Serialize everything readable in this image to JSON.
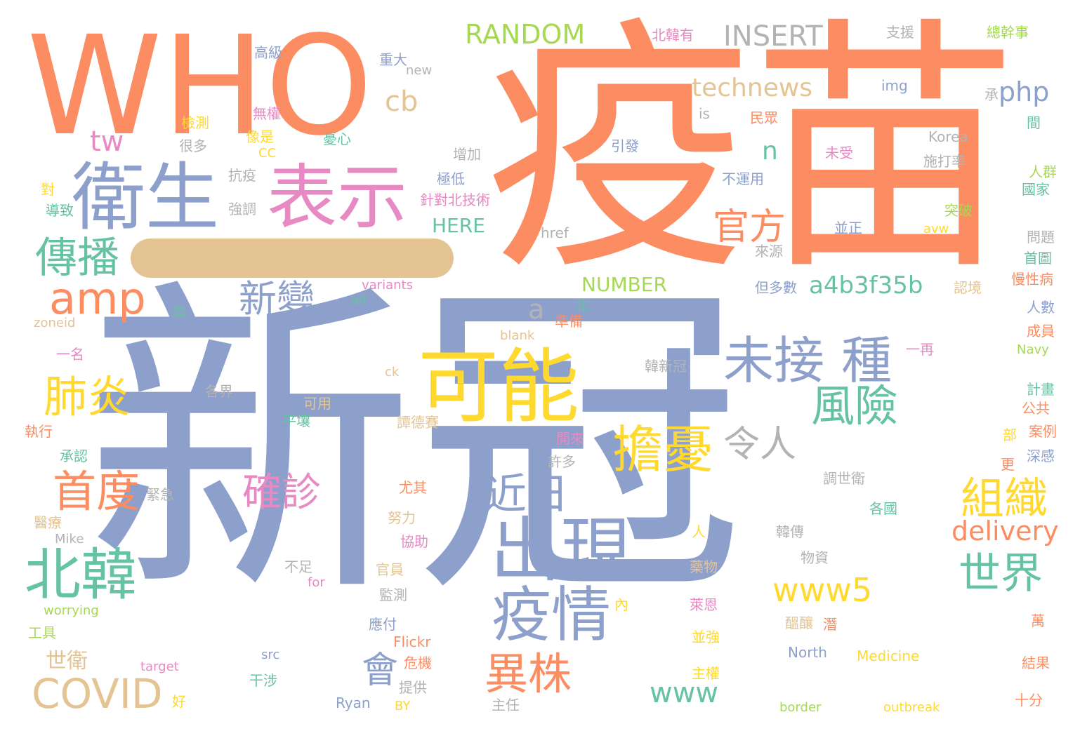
{
  "palette": {
    "orange": "#fc8d62",
    "blue": "#8da0cb",
    "pink": "#e78ac3",
    "green": "#66c2a5",
    "lime": "#a6d854",
    "yellow": "#ffd92f",
    "tan": "#e5c494",
    "gray": "#b3b3b3"
  },
  "words": [
    {
      "text": "新冠",
      "color": "#8da0cb"
    },
    {
      "text": "疫苗",
      "color": "#fc8d62"
    },
    {
      "text": "WHO",
      "color": "#fc8d62"
    },
    {
      "text": "衛生",
      "color": "#8da0cb"
    },
    {
      "text": "表示",
      "color": "#e78ac3"
    },
    {
      "text": "可能",
      "color": "#ffd92f"
    },
    {
      "text": "出現",
      "color": "#8da0cb"
    },
    {
      "text": "疫情",
      "color": "#8da0cb"
    },
    {
      "text": "amp",
      "color": "#fc8d62"
    },
    {
      "text": "北韓",
      "color": "#66c2a5"
    },
    {
      "text": "未接",
      "color": "#8da0cb"
    },
    {
      "text": "種",
      "color": "#8da0cb"
    },
    {
      "text": "擔憂",
      "color": "#ffd92f"
    },
    {
      "text": "COVID",
      "color": "#e5c494"
    },
    {
      "text": "傳播",
      "color": "#66c2a5"
    },
    {
      "text": "肺炎",
      "color": "#ffd92f"
    },
    {
      "text": "首度",
      "color": "#fc8d62"
    },
    {
      "text": "風險",
      "color": "#66c2a5"
    },
    {
      "text": "組織",
      "color": "#ffd92f"
    },
    {
      "text": "世界",
      "color": "#66c2a5"
    },
    {
      "text": "異株",
      "color": "#fc8d62"
    },
    {
      "text": "近日",
      "color": "#8da0cb"
    },
    {
      "text": "確診",
      "color": "#e78ac3"
    },
    {
      "text": "新變",
      "color": "#8da0cb"
    },
    {
      "text": "官方",
      "color": "#fc8d62"
    },
    {
      "text": "令人",
      "color": "#b3b3b3"
    },
    {
      "text": "www5",
      "color": "#ffd92f"
    },
    {
      "text": "會",
      "color": "#8da0cb"
    },
    {
      "text": "a4b3f35b",
      "color": "#66c2a5"
    },
    {
      "text": "delivery",
      "color": "#fc8d62"
    },
    {
      "text": "technews",
      "color": "#e5c494"
    },
    {
      "text": "RANDOM",
      "color": "#a6d854"
    },
    {
      "text": "INSERT",
      "color": "#b3b3b3"
    },
    {
      "text": "php",
      "color": "#8da0cb"
    },
    {
      "text": "cb",
      "color": "#e5c494"
    },
    {
      "text": "tw",
      "color": "#e78ac3"
    },
    {
      "text": "www",
      "color": "#66c2a5"
    },
    {
      "text": "a",
      "color": "#b3b3b3"
    },
    {
      "text": "n",
      "color": "#66c2a5"
    },
    {
      "text": "NUMBER",
      "color": "#a6d854"
    },
    {
      "text": "HERE",
      "color": "#66c2a5"
    },
    {
      "text": "世衛",
      "color": "#e5c494"
    },
    {
      "text": "Korea",
      "color": "#b3b3b3"
    },
    {
      "text": "施打率",
      "color": "#b3b3b3"
    },
    {
      "text": "北韓有",
      "color": "#e78ac3"
    },
    {
      "text": "支援",
      "color": "#b3b3b3"
    },
    {
      "text": "總幹事",
      "color": "#a6d854"
    },
    {
      "text": "高級",
      "color": "#8da0cb"
    },
    {
      "text": "重大",
      "color": "#8da0cb"
    },
    {
      "text": "new",
      "color": "#b3b3b3"
    },
    {
      "text": "img",
      "color": "#8da0cb"
    },
    {
      "text": "承",
      "color": "#b3b3b3"
    },
    {
      "text": "間",
      "color": "#66c2a5"
    },
    {
      "text": "檢測",
      "color": "#ffd92f"
    },
    {
      "text": "無權",
      "color": "#e78ac3"
    },
    {
      "text": "is",
      "color": "#b3b3b3"
    },
    {
      "text": "民眾",
      "color": "#fc8d62"
    },
    {
      "text": "像是",
      "color": "#ffd92f"
    },
    {
      "text": "很多",
      "color": "#b3b3b3"
    },
    {
      "text": "憂心",
      "color": "#66c2a5"
    },
    {
      "text": "引發",
      "color": "#8da0cb"
    },
    {
      "text": "未受",
      "color": "#e78ac3"
    },
    {
      "text": "CC",
      "color": "#ffd92f"
    },
    {
      "text": "增加",
      "color": "#b3b3b3"
    },
    {
      "text": "人群",
      "color": "#a6d854"
    },
    {
      "text": "抗疫",
      "color": "#b3b3b3"
    },
    {
      "text": "極低",
      "color": "#8da0cb"
    },
    {
      "text": "不運用",
      "color": "#8da0cb"
    },
    {
      "text": "國家",
      "color": "#66c2a5"
    },
    {
      "text": "對",
      "color": "#ffd92f"
    },
    {
      "text": "針對北技術",
      "color": "#e78ac3"
    },
    {
      "text": "突破",
      "color": "#a6d854"
    },
    {
      "text": "導致",
      "color": "#66c2a5"
    },
    {
      "text": "強調",
      "color": "#b3b3b3"
    },
    {
      "text": "並正",
      "color": "#8da0cb"
    },
    {
      "text": "avw",
      "color": "#ffd92f"
    },
    {
      "text": "href",
      "color": "#b3b3b3"
    },
    {
      "text": "問題",
      "color": "#b3b3b3"
    },
    {
      "text": "來源",
      "color": "#b3b3b3"
    },
    {
      "text": "首圖",
      "color": "#66c2a5"
    },
    {
      "text": "慢性病",
      "color": "#fc8d62"
    },
    {
      "text": "variants",
      "color": "#e78ac3"
    },
    {
      "text": "但多數",
      "color": "#8da0cb"
    },
    {
      "text": "認境",
      "color": "#e5c494"
    },
    {
      "text": "alt",
      "color": "#66c2a5"
    },
    {
      "text": "北",
      "color": "#66c2a5"
    },
    {
      "text": "人數",
      "color": "#8da0cb"
    },
    {
      "text": "高",
      "color": "#66c2a5"
    },
    {
      "text": "準備",
      "color": "#fc8d62"
    },
    {
      "text": "zoneid",
      "color": "#e5c494"
    },
    {
      "text": "blank",
      "color": "#e5c494"
    },
    {
      "text": "成員",
      "color": "#fc8d62"
    },
    {
      "text": "一名",
      "color": "#e78ac3"
    },
    {
      "text": "一再",
      "color": "#e78ac3"
    },
    {
      "text": "Navy",
      "color": "#a6d854"
    },
    {
      "text": "韓新冠",
      "color": "#b3b3b3"
    },
    {
      "text": "ck",
      "color": "#e5c494"
    },
    {
      "text": "各界",
      "color": "#b3b3b3"
    },
    {
      "text": "計畫",
      "color": "#66c2a5"
    },
    {
      "text": "可用",
      "color": "#e5c494"
    },
    {
      "text": "公共",
      "color": "#fc8d62"
    },
    {
      "text": "執行",
      "color": "#fc8d62"
    },
    {
      "text": "平壤",
      "color": "#66c2a5"
    },
    {
      "text": "譚德賽",
      "color": "#e5c494"
    },
    {
      "text": "開來",
      "color": "#e78ac3"
    },
    {
      "text": "部",
      "color": "#ffd92f"
    },
    {
      "text": "案例",
      "color": "#fc8d62"
    },
    {
      "text": "承認",
      "color": "#66c2a5"
    },
    {
      "text": "深感",
      "color": "#8da0cb"
    },
    {
      "text": "許多",
      "color": "#b3b3b3"
    },
    {
      "text": "更",
      "color": "#fc8d62"
    },
    {
      "text": "緊急",
      "color": "#b3b3b3"
    },
    {
      "text": "尤其",
      "color": "#fc8d62"
    },
    {
      "text": "調世衛",
      "color": "#b3b3b3"
    },
    {
      "text": "醫療",
      "color": "#e5c494"
    },
    {
      "text": "努力",
      "color": "#e5c494"
    },
    {
      "text": "各國",
      "color": "#66c2a5"
    },
    {
      "text": "Mike",
      "color": "#b3b3b3"
    },
    {
      "text": "協助",
      "color": "#e78ac3"
    },
    {
      "text": "人",
      "color": "#ffd92f"
    },
    {
      "text": "韓傳",
      "color": "#b3b3b3"
    },
    {
      "text": "物資",
      "color": "#b3b3b3"
    },
    {
      "text": "不足",
      "color": "#b3b3b3"
    },
    {
      "text": "官員",
      "color": "#e5c494"
    },
    {
      "text": "藥物",
      "color": "#e5c494"
    },
    {
      "text": "for",
      "color": "#e78ac3"
    },
    {
      "text": "監測",
      "color": "#b3b3b3"
    },
    {
      "text": "內",
      "color": "#ffd92f"
    },
    {
      "text": "萊恩",
      "color": "#e78ac3"
    },
    {
      "text": "worrying",
      "color": "#a6d854"
    },
    {
      "text": "應付",
      "color": "#8da0cb"
    },
    {
      "text": "醞釀",
      "color": "#e5c494"
    },
    {
      "text": "潛",
      "color": "#fc8d62"
    },
    {
      "text": "萬",
      "color": "#fc8d62"
    },
    {
      "text": "工具",
      "color": "#a6d854"
    },
    {
      "text": "Flickr",
      "color": "#fc8d62"
    },
    {
      "text": "並強",
      "color": "#ffd92f"
    },
    {
      "text": "src",
      "color": "#8da0cb"
    },
    {
      "text": "危機",
      "color": "#fc8d62"
    },
    {
      "text": "North",
      "color": "#8da0cb"
    },
    {
      "text": "Medicine",
      "color": "#ffd92f"
    },
    {
      "text": "結果",
      "color": "#fc8d62"
    },
    {
      "text": "target",
      "color": "#e78ac3"
    },
    {
      "text": "干涉",
      "color": "#66c2a5"
    },
    {
      "text": "提供",
      "color": "#b3b3b3"
    },
    {
      "text": "主權",
      "color": "#ffd92f"
    },
    {
      "text": "好",
      "color": "#ffd92f"
    },
    {
      "text": "Ryan",
      "color": "#8da0cb"
    },
    {
      "text": "BY",
      "color": "#ffd92f"
    },
    {
      "text": "主任",
      "color": "#b3b3b3"
    },
    {
      "text": "border",
      "color": "#a6d854"
    },
    {
      "text": "outbreak",
      "color": "#ffd92f"
    },
    {
      "text": "十分",
      "color": "#fc8d62"
    }
  ]
}
